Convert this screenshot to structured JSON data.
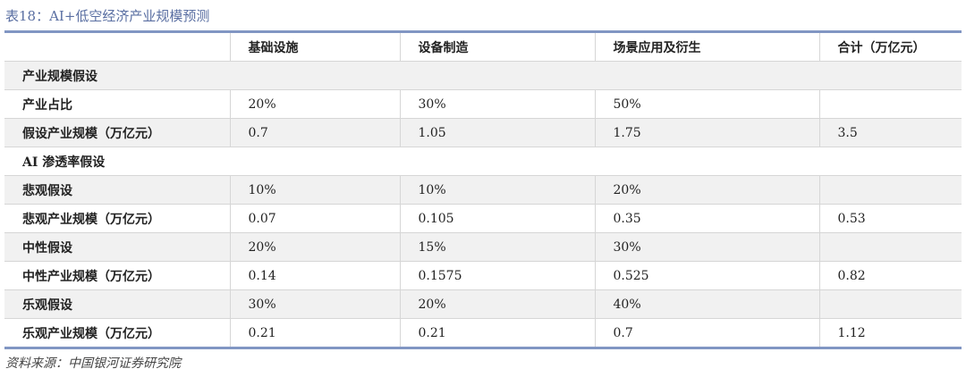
{
  "title": "表18：AI+低空经济产业规模预测",
  "table": {
    "headers": [
      "",
      "基础设施",
      "设备制造",
      "场景应用及衍生",
      "合计（万亿元）"
    ],
    "sections": [
      {
        "label": "产业规模假设",
        "rows": [
          {
            "label": "产业占比",
            "cells": [
              "20%",
              "30%",
              "50%",
              ""
            ]
          },
          {
            "label": "假设产业规模（万亿元）",
            "cells": [
              "0.7",
              "1.05",
              "1.75",
              "3.5"
            ]
          }
        ]
      },
      {
        "label": "AI 渗透率假设",
        "rows": [
          {
            "label": "悲观假设",
            "cells": [
              "10%",
              "10%",
              "20%",
              ""
            ]
          },
          {
            "label": "悲观产业规模（万亿元）",
            "cells": [
              "0.07",
              "0.105",
              "0.35",
              "0.53"
            ]
          },
          {
            "label": "中性假设",
            "cells": [
              "20%",
              "15%",
              "30%",
              ""
            ]
          },
          {
            "label": "中性产业规模（万亿元）",
            "cells": [
              "0.14",
              "0.1575",
              "0.525",
              "0.82"
            ]
          },
          {
            "label": "乐观假设",
            "cells": [
              "30%",
              "20%",
              "40%",
              ""
            ]
          },
          {
            "label": "乐观产业规模（万亿元）",
            "cells": [
              "0.21",
              "0.21",
              "0.7",
              "1.12"
            ]
          }
        ]
      }
    ]
  },
  "source": "资料来源：中国银河证券研究院"
}
